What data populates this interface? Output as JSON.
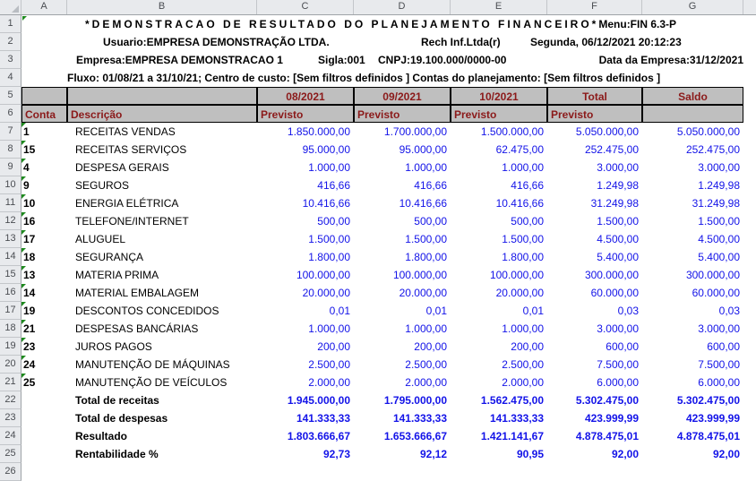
{
  "frame": {
    "column_letters": [
      "A",
      "B",
      "C",
      "D",
      "E",
      "F",
      "G"
    ],
    "row_numbers": [
      "1",
      "2",
      "3",
      "4",
      "5",
      "6",
      "7",
      "8",
      "9",
      "10",
      "11",
      "12",
      "13",
      "14",
      "15",
      "16",
      "17",
      "18",
      "19",
      "20",
      "21",
      "22",
      "23",
      "24",
      "25",
      "26"
    ]
  },
  "info": {
    "title": "*DEMONSTRACAO DE RESULTADO DO PLANEJAMENTO FINANCEIRO*",
    "menu": "Menu:FIN 6.3-P",
    "usuario": "Usuario:EMPRESA DEMONSTRAÇÃO LTDA.",
    "rech": "Rech Inf.Ltda(r)",
    "datetime": "Segunda, 06/12/2021 20:12:23",
    "empresa": "Empresa:EMPRESA DEMONSTRACAO 1",
    "sigla": "Sigla:001",
    "cnpj": "CNPJ:19.100.000/0000-00",
    "data_empresa": "Data da Empresa:31/12/2021",
    "fluxo": "Fluxo: 01/08/21 a 31/10/21; Centro de custo: [Sem filtros definidos ] Contas do planejamento: [Sem filtros definidos ]"
  },
  "table": {
    "header_row1": [
      "",
      "",
      "08/2021",
      "09/2021",
      "10/2021",
      "Total",
      "Saldo"
    ],
    "header_row2": [
      "Conta",
      "Descrição",
      "Previsto",
      "Previsto",
      "Previsto",
      "Previsto",
      ""
    ],
    "rows": [
      {
        "conta": "1",
        "descricao": "RECEITAS VENDAS",
        "values": [
          "1.850.000,00",
          "1.700.000,00",
          "1.500.000,00",
          "5.050.000,00",
          "5.050.000,00"
        ]
      },
      {
        "conta": "15",
        "descricao": "RECEITAS SERVIÇOS",
        "values": [
          "95.000,00",
          "95.000,00",
          "62.475,00",
          "252.475,00",
          "252.475,00"
        ]
      },
      {
        "conta": "4",
        "descricao": "DESPESA GERAIS",
        "values": [
          "1.000,00",
          "1.000,00",
          "1.000,00",
          "3.000,00",
          "3.000,00"
        ]
      },
      {
        "conta": "9",
        "descricao": "SEGUROS",
        "values": [
          "416,66",
          "416,66",
          "416,66",
          "1.249,98",
          "1.249,98"
        ]
      },
      {
        "conta": "10",
        "descricao": "ENERGIA ELÉTRICA",
        "values": [
          "10.416,66",
          "10.416,66",
          "10.416,66",
          "31.249,98",
          "31.249,98"
        ]
      },
      {
        "conta": "16",
        "descricao": "TELEFONE/INTERNET",
        "values": [
          "500,00",
          "500,00",
          "500,00",
          "1.500,00",
          "1.500,00"
        ]
      },
      {
        "conta": "17",
        "descricao": "ALUGUEL",
        "values": [
          "1.500,00",
          "1.500,00",
          "1.500,00",
          "4.500,00",
          "4.500,00"
        ]
      },
      {
        "conta": "18",
        "descricao": "SEGURANÇA",
        "values": [
          "1.800,00",
          "1.800,00",
          "1.800,00",
          "5.400,00",
          "5.400,00"
        ]
      },
      {
        "conta": "13",
        "descricao": "MATERIA PRIMA",
        "values": [
          "100.000,00",
          "100.000,00",
          "100.000,00",
          "300.000,00",
          "300.000,00"
        ]
      },
      {
        "conta": "14",
        "descricao": "MATERIAL EMBALAGEM",
        "values": [
          "20.000,00",
          "20.000,00",
          "20.000,00",
          "60.000,00",
          "60.000,00"
        ]
      },
      {
        "conta": "19",
        "descricao": "DESCONTOS CONCEDIDOS",
        "values": [
          "0,01",
          "0,01",
          "0,01",
          "0,03",
          "0,03"
        ]
      },
      {
        "conta": "21",
        "descricao": "DESPESAS BANCÁRIAS",
        "values": [
          "1.000,00",
          "1.000,00",
          "1.000,00",
          "3.000,00",
          "3.000,00"
        ]
      },
      {
        "conta": "23",
        "descricao": "JUROS PAGOS",
        "values": [
          "200,00",
          "200,00",
          "200,00",
          "600,00",
          "600,00"
        ]
      },
      {
        "conta": "24",
        "descricao": "MANUTENÇÃO DE MÁQUINAS",
        "values": [
          "2.500,00",
          "2.500,00",
          "2.500,00",
          "7.500,00",
          "7.500,00"
        ]
      },
      {
        "conta": "25",
        "descricao": "MANUTENÇÃO DE VEÍCULOS",
        "values": [
          "2.000,00",
          "2.000,00",
          "2.000,00",
          "6.000,00",
          "6.000,00"
        ]
      }
    ],
    "totals": [
      {
        "label": "Total de receitas",
        "values": [
          "1.945.000,00",
          "1.795.000,00",
          "1.562.475,00",
          "5.302.475,00",
          "5.302.475,00"
        ]
      },
      {
        "label": "Total de despesas",
        "values": [
          "141.333,33",
          "141.333,33",
          "141.333,33",
          "423.999,99",
          "423.999,99"
        ]
      },
      {
        "label": "Resultado",
        "values": [
          "1.803.666,67",
          "1.653.666,67",
          "1.421.141,67",
          "4.878.475,01",
          "4.878.475,01"
        ]
      },
      {
        "label": "Rentabilidade %",
        "values": [
          "92,73",
          "92,12",
          "90,95",
          "92,00",
          "92,00"
        ]
      }
    ]
  },
  "colors": {
    "header_fill": "#bfbfbf",
    "header_text": "#8b1a1a",
    "value_text": "#1313e8",
    "frame_fill": "#e8eaed",
    "border_black": "#000000",
    "error_triangle_green": "#1e8a1e"
  }
}
